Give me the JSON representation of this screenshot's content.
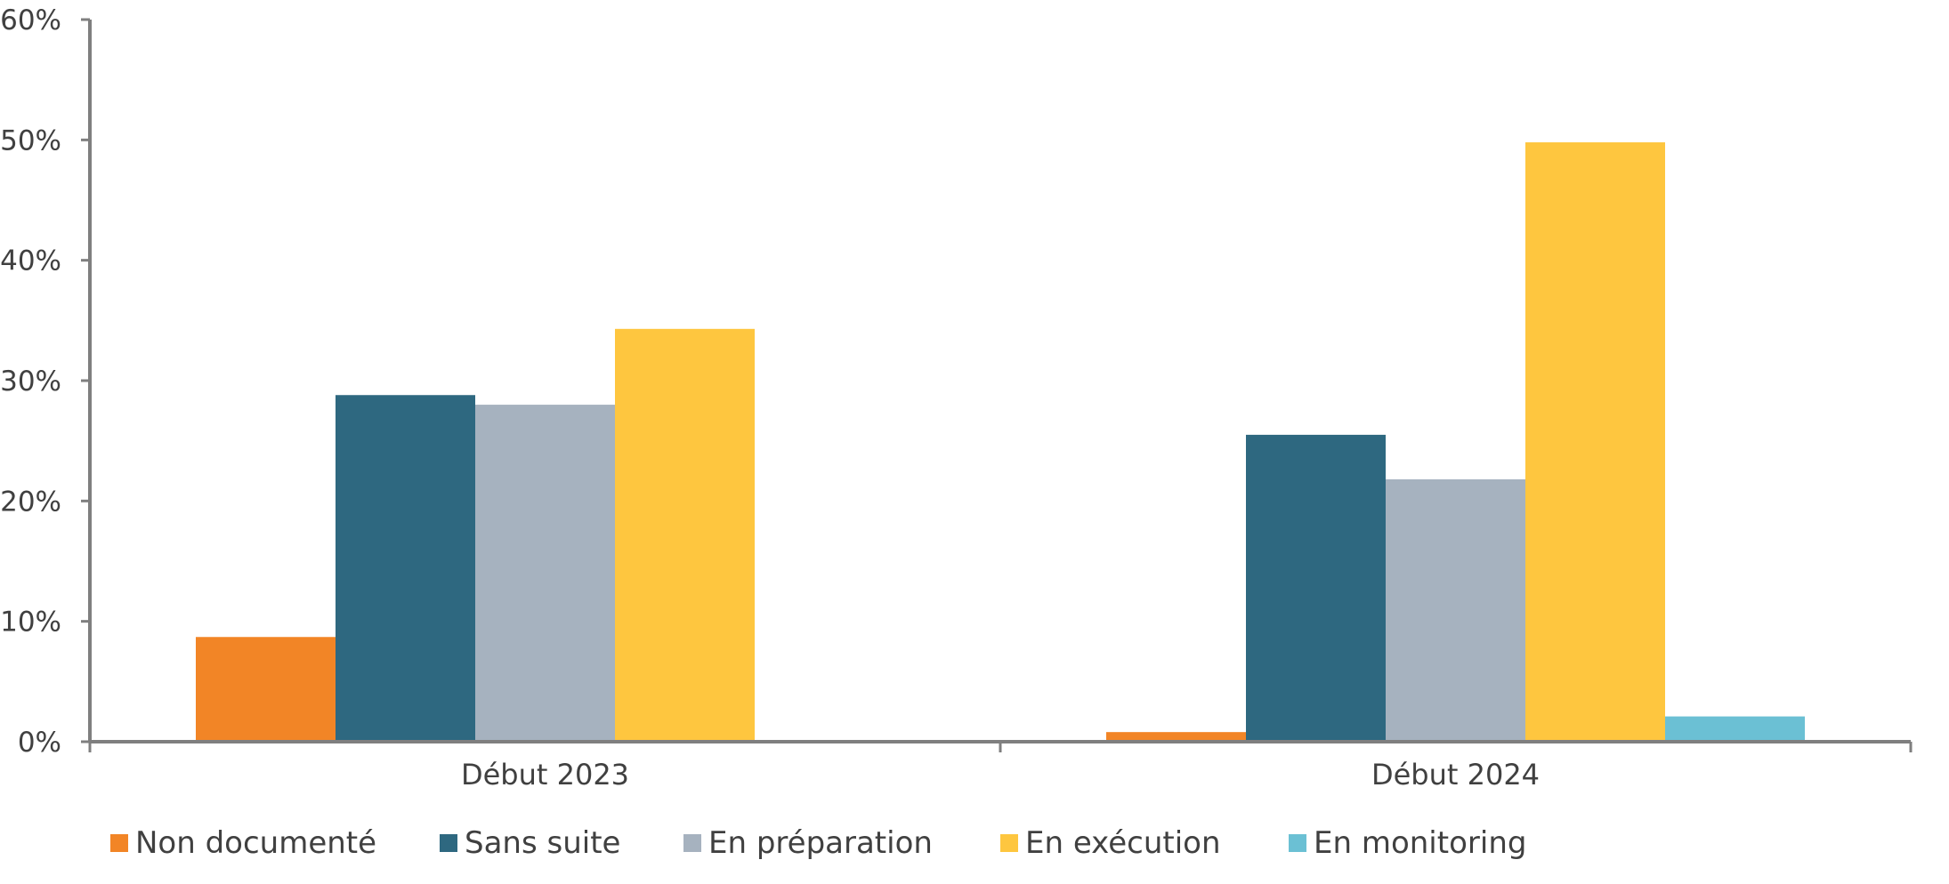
{
  "chart_data": {
    "type": "bar",
    "categories": [
      "Début 2023",
      "Début 2024"
    ],
    "series": [
      {
        "name": "Non documenté",
        "values": [
          8.7,
          0.8
        ],
        "color": "#F28526"
      },
      {
        "name": "Sans suite",
        "values": [
          28.8,
          25.5
        ],
        "color": "#2E6880"
      },
      {
        "name": "En préparation",
        "values": [
          28.0,
          21.8
        ],
        "color": "#A6B2BF"
      },
      {
        "name": "En exécution",
        "values": [
          34.3,
          49.8
        ],
        "color": "#FEC63F"
      },
      {
        "name": "En monitoring",
        "values": [
          0,
          2.1
        ],
        "color": "#6BC0D4"
      }
    ],
    "ylim": [
      0,
      60
    ],
    "yticks": [
      "0%",
      "10%",
      "20%",
      "30%",
      "40%",
      "50%",
      "60%"
    ],
    "ytick_values": [
      0,
      10,
      20,
      30,
      40,
      50,
      60
    ],
    "grid": false,
    "legend_position": "bottom",
    "axis_color": "#7F7F7F"
  }
}
